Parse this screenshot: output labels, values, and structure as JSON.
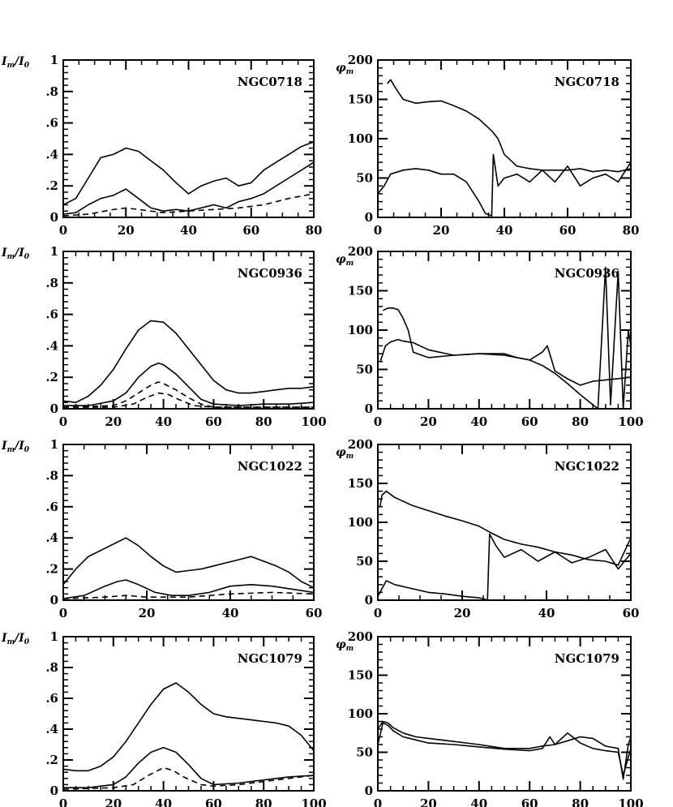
{
  "figure": {
    "left_ylabel": "I_m/I_0",
    "right_ylabel": "φ_m"
  },
  "chart_data": [
    {
      "type": "line",
      "galaxy": "NGC0718",
      "quantity": "amplitude",
      "xlim": [
        0,
        80
      ],
      "ylim": [
        0,
        1
      ],
      "xticks": [
        0,
        20,
        40,
        60,
        80
      ],
      "xtick_labels": [
        "0",
        "20",
        "40",
        "60",
        "80"
      ],
      "yticks": [
        0,
        0.2,
        0.4,
        0.6,
        0.8,
        1
      ],
      "ytick_labels": [
        "0",
        ".2",
        ".4",
        ".6",
        ".8",
        "1"
      ],
      "series": [
        {
          "style": "solid",
          "x": [
            0,
            4,
            8,
            12,
            16,
            20,
            24,
            28,
            32,
            36,
            40,
            44,
            48,
            52,
            56,
            60,
            64,
            68,
            72,
            76,
            80
          ],
          "y": [
            0.08,
            0.12,
            0.25,
            0.38,
            0.4,
            0.44,
            0.42,
            0.36,
            0.3,
            0.22,
            0.15,
            0.2,
            0.23,
            0.25,
            0.2,
            0.22,
            0.3,
            0.35,
            0.4,
            0.45,
            0.48
          ]
        },
        {
          "style": "solid",
          "x": [
            0,
            4,
            8,
            12,
            16,
            20,
            24,
            28,
            32,
            36,
            40,
            44,
            48,
            52,
            56,
            60,
            64,
            68,
            72,
            76,
            80
          ],
          "y": [
            0.02,
            0.03,
            0.08,
            0.12,
            0.14,
            0.18,
            0.12,
            0.06,
            0.04,
            0.05,
            0.04,
            0.06,
            0.08,
            0.06,
            0.1,
            0.12,
            0.15,
            0.2,
            0.25,
            0.3,
            0.35
          ]
        },
        {
          "style": "dashed",
          "x": [
            0,
            8,
            16,
            20,
            24,
            32,
            40,
            48,
            56,
            64,
            72,
            80
          ],
          "y": [
            0.01,
            0.02,
            0.05,
            0.06,
            0.05,
            0.03,
            0.04,
            0.05,
            0.06,
            0.08,
            0.12,
            0.15
          ]
        }
      ]
    },
    {
      "type": "line",
      "galaxy": "NGC0718",
      "quantity": "phase",
      "xlim": [
        0,
        80
      ],
      "ylim": [
        0,
        200
      ],
      "xticks": [
        0,
        20,
        40,
        60,
        80
      ],
      "xtick_labels": [
        "0",
        "20",
        "40",
        "60",
        "80"
      ],
      "yticks": [
        0,
        50,
        100,
        150,
        200
      ],
      "ytick_labels": [
        "0",
        "50",
        "100",
        "150",
        "200"
      ],
      "series": [
        {
          "style": "solid",
          "x": [
            3,
            4,
            6,
            8,
            12,
            16,
            20,
            24,
            28,
            32,
            36,
            38,
            40,
            44,
            48,
            52,
            56,
            60,
            64,
            68,
            72,
            76,
            80
          ],
          "y": [
            170,
            175,
            162,
            150,
            145,
            147,
            148,
            142,
            135,
            125,
            110,
            100,
            80,
            65,
            62,
            60,
            60,
            60,
            62,
            58,
            60,
            58,
            62
          ]
        },
        {
          "style": "solid",
          "x": [
            0,
            2,
            4,
            8,
            12,
            16,
            20,
            24,
            28,
            32,
            34,
            36,
            36.5,
            38,
            40,
            44,
            48,
            52,
            56,
            60,
            64,
            68,
            72,
            76,
            80
          ],
          "y": [
            30,
            40,
            55,
            60,
            62,
            60,
            55,
            55,
            45,
            20,
            5,
            2,
            80,
            40,
            50,
            55,
            45,
            60,
            45,
            65,
            40,
            50,
            55,
            45,
            70
          ]
        }
      ]
    },
    {
      "type": "line",
      "galaxy": "NGC0936",
      "quantity": "amplitude",
      "xlim": [
        0,
        100
      ],
      "ylim": [
        0,
        1
      ],
      "xticks": [
        0,
        20,
        40,
        60,
        80,
        100
      ],
      "xtick_labels": [
        "0",
        "20",
        "40",
        "60",
        "80",
        "100"
      ],
      "yticks": [
        0,
        0.2,
        0.4,
        0.6,
        0.8,
        1
      ],
      "ytick_labels": [
        "0",
        ".2",
        ".4",
        ".6",
        ".8",
        "1"
      ],
      "series": [
        {
          "style": "solid",
          "x": [
            0,
            5,
            10,
            15,
            20,
            25,
            30,
            35,
            40,
            45,
            50,
            55,
            60,
            65,
            70,
            75,
            80,
            85,
            90,
            95,
            100
          ],
          "y": [
            0.05,
            0.04,
            0.08,
            0.15,
            0.25,
            0.38,
            0.5,
            0.56,
            0.55,
            0.48,
            0.38,
            0.28,
            0.18,
            0.12,
            0.1,
            0.1,
            0.11,
            0.12,
            0.13,
            0.13,
            0.14
          ]
        },
        {
          "style": "solid",
          "x": [
            0,
            10,
            20,
            25,
            30,
            35,
            38,
            40,
            45,
            50,
            55,
            60,
            70,
            80,
            90,
            100
          ],
          "y": [
            0.02,
            0.02,
            0.05,
            0.1,
            0.2,
            0.27,
            0.29,
            0.28,
            0.22,
            0.14,
            0.06,
            0.03,
            0.02,
            0.03,
            0.03,
            0.04
          ]
        },
        {
          "style": "dashed",
          "x": [
            0,
            20,
            25,
            30,
            35,
            38,
            40,
            45,
            50,
            55,
            60,
            80,
            100
          ],
          "y": [
            0.01,
            0.02,
            0.05,
            0.1,
            0.15,
            0.17,
            0.16,
            0.12,
            0.07,
            0.03,
            0.01,
            0.01,
            0.01
          ]
        },
        {
          "style": "dashed",
          "x": [
            0,
            20,
            28,
            33,
            38,
            42,
            46,
            52,
            60,
            100
          ],
          "y": [
            0.01,
            0.01,
            0.03,
            0.07,
            0.1,
            0.09,
            0.06,
            0.02,
            0.01,
            0.01
          ]
        }
      ]
    },
    {
      "type": "line",
      "galaxy": "NGC0936",
      "quantity": "phase",
      "xlim": [
        0,
        100
      ],
      "ylim": [
        0,
        200
      ],
      "xticks": [
        0,
        20,
        40,
        60,
        80,
        100
      ],
      "xtick_labels": [
        "0",
        "20",
        "40",
        "60",
        "80",
        "100"
      ],
      "yticks": [
        0,
        50,
        100,
        150,
        200
      ],
      "ytick_labels": [
        "0",
        "50",
        "100",
        "150",
        "200"
      ],
      "series": [
        {
          "style": "solid",
          "x": [
            2,
            4,
            6,
            8,
            10,
            12,
            14,
            20,
            30,
            40,
            50,
            60,
            65,
            70,
            75,
            80,
            85,
            87,
            90,
            92,
            95,
            97,
            99,
            100
          ],
          "y": [
            125,
            128,
            128,
            126,
            115,
            100,
            72,
            65,
            68,
            70,
            68,
            62,
            55,
            45,
            32,
            18,
            5,
            0,
            180,
            5,
            175,
            0,
            100,
            80
          ]
        },
        {
          "style": "solid",
          "x": [
            1,
            3,
            5,
            8,
            10,
            14,
            20,
            30,
            40,
            50,
            55,
            60,
            65,
            67,
            70,
            75,
            80,
            85,
            100
          ],
          "y": [
            60,
            80,
            85,
            88,
            86,
            84,
            75,
            68,
            70,
            70,
            65,
            62,
            72,
            80,
            48,
            38,
            30,
            35,
            40
          ]
        }
      ]
    },
    {
      "type": "line",
      "galaxy": "NGC1022",
      "quantity": "amplitude",
      "xlim": [
        0,
        60
      ],
      "ylim": [
        0,
        1
      ],
      "xticks": [
        0,
        20,
        40,
        60
      ],
      "xtick_labels": [
        "0",
        "20",
        "40",
        "60"
      ],
      "yticks": [
        0,
        0.2,
        0.4,
        0.6,
        0.8,
        1
      ],
      "ytick_labels": [
        "0",
        ".2",
        ".4",
        ".6",
        ".8",
        "1"
      ],
      "series": [
        {
          "style": "solid",
          "x": [
            0,
            3,
            6,
            9,
            12,
            15,
            18,
            21,
            24,
            27,
            30,
            33,
            36,
            39,
            42,
            45,
            48,
            51,
            54,
            57,
            60
          ],
          "y": [
            0.1,
            0.2,
            0.28,
            0.32,
            0.36,
            0.4,
            0.35,
            0.28,
            0.22,
            0.18,
            0.19,
            0.2,
            0.22,
            0.24,
            0.26,
            0.28,
            0.25,
            0.22,
            0.18,
            0.12,
            0.08
          ]
        },
        {
          "style": "solid",
          "x": [
            0,
            5,
            10,
            13,
            15,
            18,
            22,
            26,
            30,
            35,
            40,
            45,
            50,
            55,
            60
          ],
          "y": [
            0.01,
            0.03,
            0.09,
            0.12,
            0.13,
            0.1,
            0.05,
            0.03,
            0.03,
            0.05,
            0.09,
            0.1,
            0.09,
            0.07,
            0.05
          ]
        },
        {
          "style": "dashed",
          "x": [
            0,
            10,
            15,
            20,
            30,
            40,
            50,
            60
          ],
          "y": [
            0.01,
            0.02,
            0.03,
            0.02,
            0.02,
            0.04,
            0.05,
            0.04
          ]
        }
      ]
    },
    {
      "type": "line",
      "galaxy": "NGC1022",
      "quantity": "phase",
      "xlim": [
        0,
        60
      ],
      "ylim": [
        0,
        200
      ],
      "xticks": [
        0,
        20,
        40,
        60
      ],
      "xtick_labels": [
        "0",
        "20",
        "40",
        "60"
      ],
      "yticks": [
        0,
        50,
        100,
        150,
        200
      ],
      "ytick_labels": [
        "0",
        "50",
        "100",
        "150",
        "200"
      ],
      "series": [
        {
          "style": "solid",
          "x": [
            0.5,
            1,
            2,
            4,
            8,
            12,
            16,
            20,
            24,
            27,
            30,
            34,
            38,
            42,
            46,
            50,
            54,
            57,
            60
          ],
          "y": [
            120,
            135,
            140,
            132,
            122,
            115,
            108,
            102,
            95,
            86,
            78,
            72,
            68,
            62,
            58,
            52,
            50,
            45,
            80
          ]
        },
        {
          "style": "solid",
          "x": [
            0,
            2,
            4,
            8,
            12,
            16,
            20,
            24,
            25,
            26,
            26.5,
            28,
            30,
            34,
            38,
            42,
            46,
            50,
            54,
            57,
            60
          ],
          "y": [
            5,
            25,
            20,
            15,
            10,
            8,
            5,
            3,
            2,
            0,
            85,
            70,
            55,
            65,
            50,
            62,
            48,
            55,
            65,
            40,
            60
          ]
        }
      ]
    },
    {
      "type": "line",
      "galaxy": "NGC1079",
      "quantity": "amplitude",
      "xlim": [
        0,
        100
      ],
      "ylim": [
        0,
        1
      ],
      "xticks": [
        0,
        20,
        40,
        60,
        80,
        100
      ],
      "xtick_labels": [
        "0",
        "20",
        "40",
        "60",
        "80",
        "100"
      ],
      "yticks": [
        0,
        0.2,
        0.4,
        0.6,
        0.8,
        1
      ],
      "ytick_labels": [
        "0",
        ".2",
        ".4",
        ".6",
        ".8",
        "1"
      ],
      "series": [
        {
          "style": "solid",
          "x": [
            0,
            5,
            10,
            15,
            20,
            25,
            30,
            35,
            40,
            45,
            50,
            55,
            60,
            65,
            70,
            75,
            80,
            85,
            90,
            95,
            100
          ],
          "y": [
            0.14,
            0.13,
            0.13,
            0.16,
            0.22,
            0.32,
            0.44,
            0.56,
            0.66,
            0.7,
            0.64,
            0.56,
            0.5,
            0.48,
            0.47,
            0.46,
            0.45,
            0.44,
            0.42,
            0.36,
            0.26
          ]
        },
        {
          "style": "solid",
          "x": [
            0,
            10,
            20,
            25,
            30,
            35,
            40,
            45,
            50,
            55,
            60,
            70,
            80,
            90,
            100
          ],
          "y": [
            0.02,
            0.02,
            0.04,
            0.09,
            0.18,
            0.25,
            0.28,
            0.25,
            0.17,
            0.08,
            0.04,
            0.05,
            0.07,
            0.09,
            0.1
          ]
        },
        {
          "style": "dashed",
          "x": [
            0,
            20,
            28,
            34,
            40,
            44,
            48,
            55,
            60,
            70,
            80,
            90,
            100
          ],
          "y": [
            0.01,
            0.02,
            0.04,
            0.1,
            0.15,
            0.13,
            0.09,
            0.04,
            0.03,
            0.04,
            0.06,
            0.08,
            0.1
          ]
        }
      ]
    },
    {
      "type": "line",
      "galaxy": "NGC1079",
      "quantity": "phase",
      "xlim": [
        0,
        100
      ],
      "ylim": [
        0,
        200
      ],
      "xticks": [
        0,
        20,
        40,
        60,
        80,
        100
      ],
      "xtick_labels": [
        "0",
        "20",
        "40",
        "60",
        "80",
        "100"
      ],
      "yticks": [
        0,
        50,
        100,
        150,
        200
      ],
      "ytick_labels": [
        "0",
        "50",
        "100",
        "150",
        "200"
      ],
      "series": [
        {
          "style": "solid",
          "x": [
            0,
            2,
            4,
            6,
            10,
            15,
            20,
            30,
            40,
            50,
            60,
            65,
            70,
            75,
            80,
            85,
            90,
            95,
            97,
            99,
            100
          ],
          "y": [
            80,
            90,
            88,
            82,
            75,
            70,
            68,
            64,
            60,
            55,
            55,
            58,
            60,
            65,
            70,
            68,
            58,
            55,
            15,
            60,
            70
          ]
        },
        {
          "style": "solid",
          "x": [
            0,
            2,
            4,
            6,
            10,
            15,
            20,
            30,
            40,
            50,
            60,
            65,
            68,
            70,
            75,
            80,
            85,
            90,
            95,
            97,
            100
          ],
          "y": [
            60,
            88,
            85,
            78,
            70,
            66,
            62,
            60,
            57,
            54,
            52,
            55,
            70,
            60,
            75,
            62,
            55,
            52,
            50,
            20,
            55
          ]
        }
      ]
    }
  ]
}
